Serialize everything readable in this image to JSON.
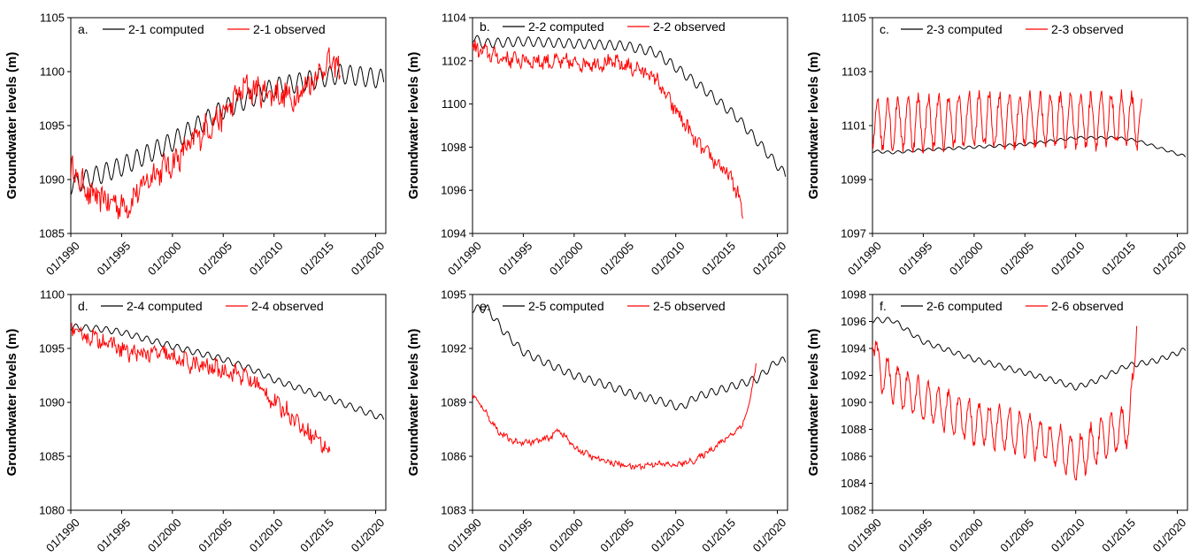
{
  "figure": {
    "ylabel": "Groundwater levels (m)",
    "x_tick_labels": [
      "01/1990",
      "01/1995",
      "01/2000",
      "01/2005",
      "01/2010",
      "01/2015",
      "01/2020"
    ]
  },
  "colors": {
    "computed": "#000000",
    "observed": "#ff0000"
  },
  "chart_data": [
    {
      "type": "line",
      "panel": "a.",
      "ylabel": "Groundwater levels (m)",
      "xlim": [
        1990,
        2021
      ],
      "ylim": [
        1085,
        1105
      ],
      "yticks": [
        1085,
        1090,
        1095,
        1100,
        1105
      ],
      "xticks": [
        "01/1990",
        "01/1995",
        "01/2000",
        "01/2005",
        "01/2010",
        "01/2015",
        "01/2020"
      ],
      "legend_position": "top",
      "series": [
        {
          "name": "2-1 computed",
          "color": "#000000",
          "x": [
            1990,
            1995,
            2000,
            2005,
            2010,
            2016.5,
            2020.8
          ],
          "y": [
            1089.5,
            1091.2,
            1093.5,
            1096.5,
            1098.5,
            1099.8,
            1099.3
          ],
          "seasonal_amplitude": 0.9
        },
        {
          "name": "2-1 observed",
          "color": "#ff0000",
          "x": [
            1990,
            1992,
            1995.5,
            1998,
            2000,
            2003,
            2005,
            2007,
            2010,
            2012,
            2014,
            2015.5,
            2016.5
          ],
          "y": [
            1091,
            1088.5,
            1087.5,
            1090.5,
            1091.5,
            1094.5,
            1096,
            1098.5,
            1098,
            1097.5,
            1099.5,
            1101,
            1100
          ],
          "noise_amplitude": 1.4
        }
      ]
    },
    {
      "type": "line",
      "panel": "b.",
      "ylabel": "Groundwater levels (m)",
      "xlim": [
        1990,
        2021
      ],
      "ylim": [
        1094,
        1104
      ],
      "yticks": [
        1094,
        1096,
        1098,
        1100,
        1102,
        1104
      ],
      "xticks": [
        "01/1990",
        "01/1995",
        "01/2000",
        "01/2005",
        "01/2010",
        "01/2015",
        "01/2020"
      ],
      "legend_position": "top",
      "series": [
        {
          "name": "2-2 computed",
          "color": "#000000",
          "x": [
            1990,
            1991,
            1995,
            2000,
            2005,
            2008,
            2010,
            2013,
            2016,
            2018,
            2020.8
          ],
          "y": [
            1103.1,
            1102.8,
            1102.9,
            1102.8,
            1102.7,
            1102.4,
            1101.7,
            1100.6,
            1099.4,
            1098.3,
            1096.7
          ],
          "seasonal_amplitude": 0.22
        },
        {
          "name": "2-2 observed",
          "color": "#ff0000",
          "x": [
            1990,
            1993,
            1996,
            2000,
            2004,
            2006.5,
            2008,
            2009,
            2010,
            2011,
            2012,
            2014,
            2015.5,
            2016.3,
            2016.6
          ],
          "y": [
            1102.6,
            1102.1,
            1102.0,
            1101.9,
            1101.9,
            1101.6,
            1101.2,
            1100.4,
            1099.7,
            1099.0,
            1098.2,
            1097.3,
            1096.5,
            1095.6,
            1094.6
          ],
          "noise_amplitude": 0.4
        }
      ]
    },
    {
      "type": "line",
      "panel": "c.",
      "ylabel": "Groundwater levels (m)",
      "xlim": [
        1990,
        2021
      ],
      "ylim": [
        1097,
        1105
      ],
      "yticks": [
        1097,
        1099,
        1101,
        1103,
        1105
      ],
      "xticks": [
        "01/1990",
        "01/1995",
        "01/2000",
        "01/2005",
        "01/2010",
        "01/2015",
        "01/2020"
      ],
      "legend_position": "top",
      "series": [
        {
          "name": "2-3 computed",
          "color": "#000000",
          "x": [
            1990,
            1992,
            1995,
            2000,
            2005,
            2010,
            2014,
            2016,
            2018,
            2020.8
          ],
          "y": [
            1100.05,
            1100.0,
            1100.1,
            1100.2,
            1100.3,
            1100.55,
            1100.55,
            1100.45,
            1100.2,
            1099.85
          ],
          "seasonal_amplitude": 0.05
        },
        {
          "name": "2-3 observed",
          "color": "#ff0000",
          "x": [
            1990,
            1995,
            2000,
            2005,
            2010,
            2015,
            2016.5
          ],
          "y": [
            1101.1,
            1101.1,
            1101.2,
            1101.2,
            1101.2,
            1101.2,
            1101.1
          ],
          "seasonal_amplitude": 0.95
        }
      ]
    },
    {
      "type": "line",
      "panel": "d.",
      "ylabel": "Groundwater levels (m)",
      "xlim": [
        1990,
        2021
      ],
      "ylim": [
        1080,
        1100
      ],
      "yticks": [
        1080,
        1085,
        1090,
        1095,
        1100
      ],
      "xticks": [
        "01/1990",
        "01/1995",
        "01/2000",
        "01/2005",
        "01/2010",
        "01/2015",
        "01/2020"
      ],
      "legend_position": "top",
      "series": [
        {
          "name": "2-4 computed",
          "color": "#000000",
          "x": [
            1990,
            1993,
            1995,
            2000,
            2005,
            2008,
            2010,
            2015,
            2020.8
          ],
          "y": [
            1097,
            1096.8,
            1096.5,
            1095.2,
            1094,
            1093,
            1092.1,
            1090.5,
            1088.5
          ],
          "seasonal_amplitude": 0.3
        },
        {
          "name": "2-4 observed",
          "color": "#ff0000",
          "x": [
            1990,
            1993,
            1996,
            1999,
            2002,
            2005,
            2007,
            2008.5,
            2010,
            2011.5,
            2013,
            2014.5,
            2015.5
          ],
          "y": [
            1096.5,
            1095.8,
            1094.5,
            1094.5,
            1093.5,
            1093,
            1092.5,
            1091.5,
            1090,
            1089,
            1087.5,
            1086.5,
            1085.2
          ],
          "noise_amplitude": 0.9
        }
      ]
    },
    {
      "type": "line",
      "panel": "e.",
      "ylabel": "Groundwater levels (m)",
      "xlim": [
        1990,
        2021
      ],
      "ylim": [
        1083,
        1095
      ],
      "yticks": [
        1083,
        1086,
        1089,
        1092,
        1095
      ],
      "xticks": [
        "01/1990",
        "01/1995",
        "01/2000",
        "01/2005",
        "01/2010",
        "01/2015",
        "01/2020"
      ],
      "legend_position": "top",
      "series": [
        {
          "name": "2-5 computed",
          "color": "#000000",
          "x": [
            1990,
            1991.5,
            1993,
            1995,
            1998,
            2000,
            2003,
            2006,
            2009,
            2010.5,
            2012,
            2015,
            2018,
            2020,
            2020.8
          ],
          "y": [
            1094.2,
            1094.2,
            1093,
            1091.8,
            1091,
            1090.5,
            1090,
            1089.4,
            1089,
            1088.7,
            1089.3,
            1089.8,
            1090.3,
            1091.3,
            1091.3
          ],
          "seasonal_amplitude": 0.22
        },
        {
          "name": "2-5 observed",
          "color": "#ff0000",
          "x": [
            1990,
            1991,
            1992.5,
            1994,
            1996,
            1997.5,
            1998.5,
            2000,
            2002,
            2004,
            2006,
            2008,
            2010,
            2012,
            2013.5,
            2015,
            2016.5,
            2017.3,
            2017.9
          ],
          "y": [
            1089.4,
            1088.7,
            1087.4,
            1086.8,
            1086.8,
            1087.0,
            1087.5,
            1086.5,
            1085.9,
            1085.6,
            1085.4,
            1085.6,
            1085.5,
            1085.8,
            1086.4,
            1087.0,
            1087.7,
            1089.0,
            1091.2
          ],
          "noise_amplitude": 0.18
        }
      ]
    },
    {
      "type": "line",
      "panel": "f.",
      "ylabel": "Groundwater levels (m)",
      "xlim": [
        1990,
        2021
      ],
      "ylim": [
        1082,
        1098
      ],
      "yticks": [
        1082,
        1084,
        1086,
        1088,
        1090,
        1092,
        1094,
        1096,
        1098
      ],
      "xticks": [
        "01/1990",
        "01/1995",
        "01/2000",
        "01/2005",
        "01/2010",
        "01/2015",
        "01/2020"
      ],
      "legend_position": "top",
      "series": [
        {
          "name": "2-6 computed",
          "color": "#000000",
          "x": [
            1990,
            1992,
            1995,
            2000,
            2005,
            2008,
            2010,
            2012,
            2015,
            2018,
            2020.8
          ],
          "y": [
            1096.1,
            1096.1,
            1094.5,
            1093.2,
            1092.2,
            1091.6,
            1091.1,
            1091.6,
            1092.7,
            1093.1,
            1093.9
          ],
          "seasonal_amplitude": 0.2
        },
        {
          "name": "2-6 observed",
          "color": "#ff0000",
          "x": [
            1990,
            1990.5,
            1992,
            1995,
            1998,
            2000,
            2003,
            2006,
            2008,
            2010,
            2012,
            2014,
            2015.3,
            2015.7,
            2016
          ],
          "y": [
            1095.5,
            1092.5,
            1091.5,
            1090,
            1089.2,
            1088.5,
            1088,
            1087.4,
            1086.8,
            1085.8,
            1087.0,
            1087.8,
            1088.5,
            1091.5,
            1097.3
          ],
          "seasonal_amplitude": 1.5
        }
      ]
    }
  ]
}
